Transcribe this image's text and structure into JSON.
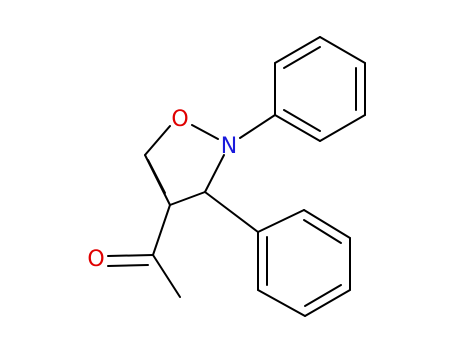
{
  "atoms": [
    {
      "label": "O",
      "color": "#e00000"
    },
    {
      "label": "N",
      "color": "#1a1adc"
    },
    {
      "label": "O",
      "color": "#e00000"
    }
  ]
}
